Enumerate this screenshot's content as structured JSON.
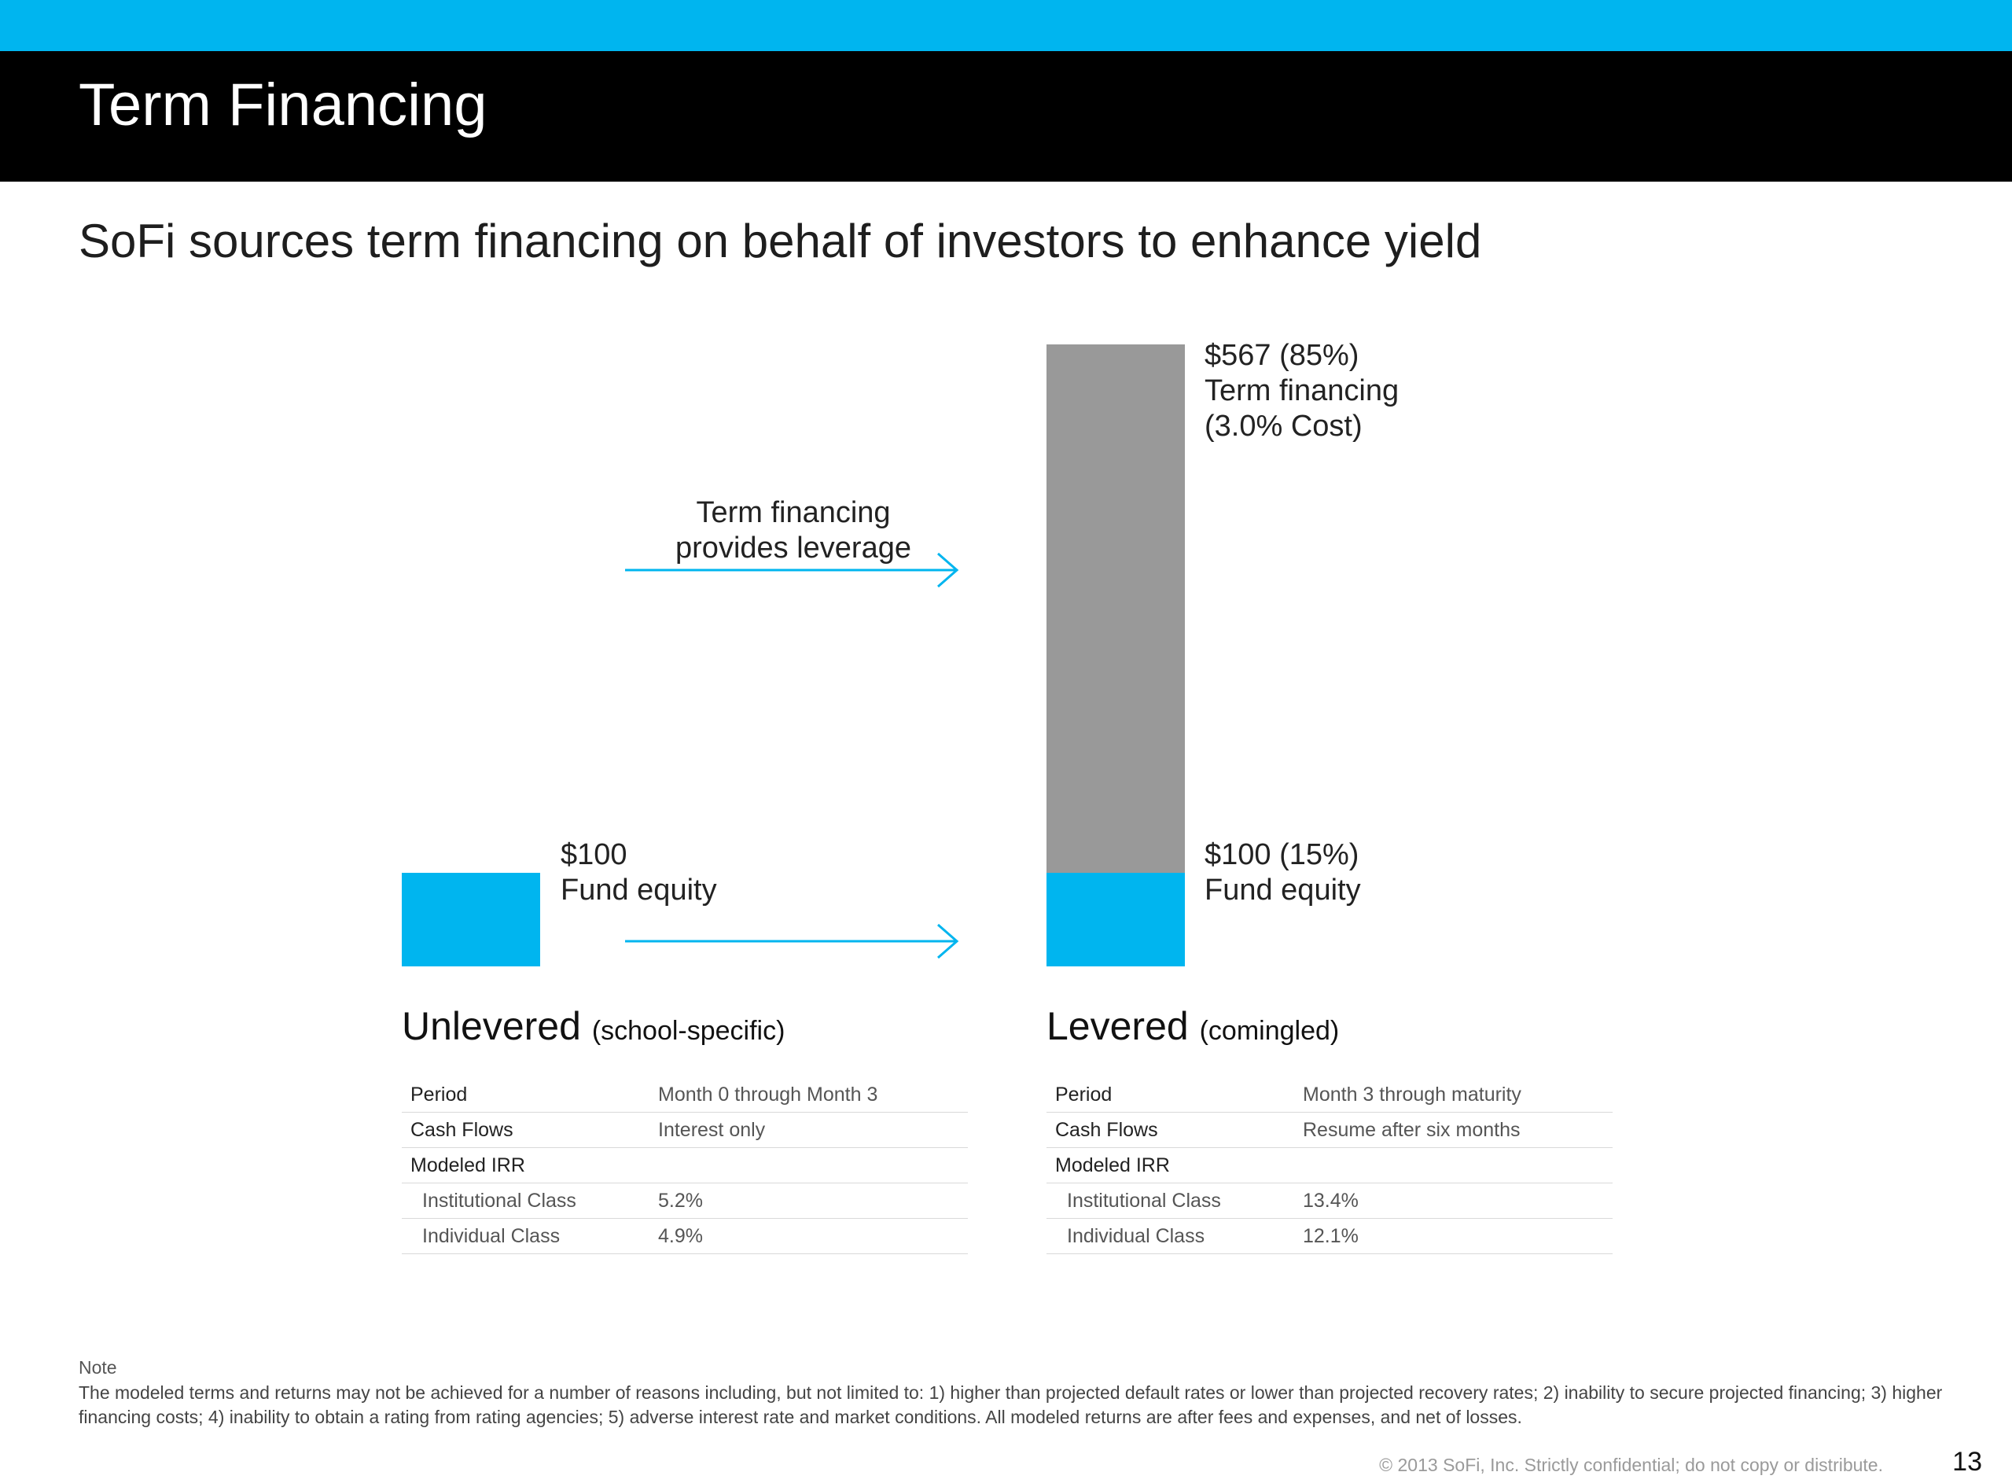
{
  "header": {
    "title": "Term Financing",
    "subtitle": "SoFi sources term financing on behalf of investors to enhance yield"
  },
  "colors": {
    "brand_blue": "#00b5ef",
    "financing_gray": "#999999",
    "header_black": "#000000"
  },
  "chart_data": {
    "type": "bar",
    "categories": [
      "Unlevered",
      "Levered"
    ],
    "series": [
      {
        "name": "Fund equity",
        "values": [
          100,
          100
        ]
      },
      {
        "name": "Term financing",
        "values": [
          0,
          567
        ]
      }
    ],
    "ylim": [
      0,
      667
    ],
    "unlevered_label": {
      "amount": "$100",
      "name": "Fund equity"
    },
    "levered_financing_label": {
      "amount": "$567 (85%)",
      "name": "Term financing",
      "cost": "(3.0% Cost)"
    },
    "levered_equity_label": {
      "amount": "$100 (15%)",
      "name": "Fund equity"
    },
    "arrow_label_line1": "Term financing",
    "arrow_label_line2": "provides leverage"
  },
  "unlevered": {
    "heading": "Unlevered",
    "heading_sub": "(school-specific)",
    "rows": [
      {
        "key": "Period",
        "value": "Month 0 through Month 3"
      },
      {
        "key": "Cash Flows",
        "value": "Interest only"
      },
      {
        "key": "Modeled IRR",
        "value": ""
      },
      {
        "key": "Institutional Class",
        "value": "5.2%"
      },
      {
        "key": "Individual Class",
        "value": "4.9%"
      }
    ]
  },
  "levered": {
    "heading": "Levered",
    "heading_sub": "(comingled)",
    "rows": [
      {
        "key": "Period",
        "value": "Month 3 through maturity"
      },
      {
        "key": "Cash Flows",
        "value": "Resume after six months"
      },
      {
        "key": "Modeled IRR",
        "value": ""
      },
      {
        "key": "Institutional Class",
        "value": "13.4%"
      },
      {
        "key": "Individual Class",
        "value": "12.1%"
      }
    ]
  },
  "note": {
    "label": "Note",
    "text": "The modeled terms and returns may not be achieved for a number of reasons including, but not limited to: 1) higher than projected default rates or lower than projected recovery rates; 2) inability to secure projected financing; 3) higher financing costs; 4) inability to obtain a rating from rating agencies; 5) adverse interest rate and market conditions. All modeled returns are after fees and expenses, and net of losses."
  },
  "footer": {
    "copyright": "© 2013 SoFi, Inc. Strictly confidential; do not copy or distribute.",
    "page_number": "13"
  }
}
